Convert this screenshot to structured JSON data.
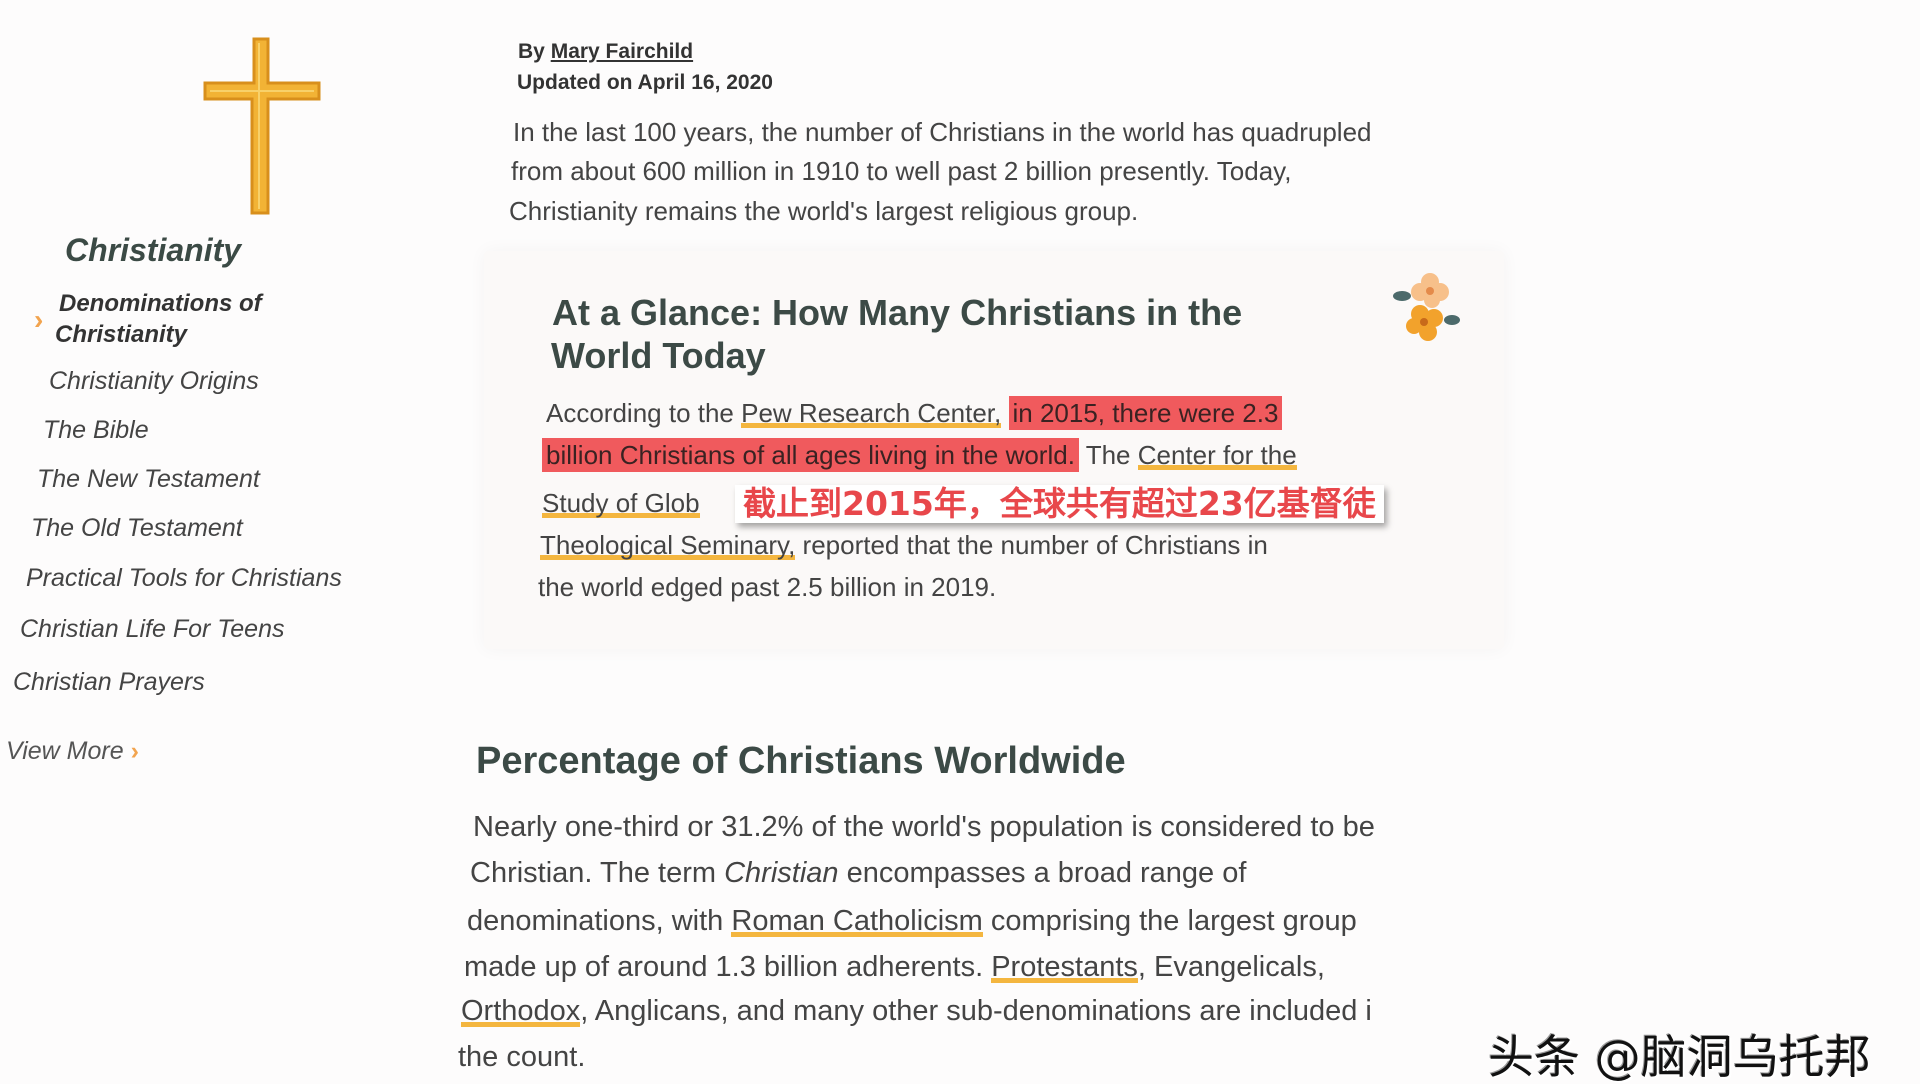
{
  "sidebar": {
    "title": "Christianity",
    "items": [
      {
        "label_lines": [
          "Denominations of",
          "Christianity"
        ],
        "active": true
      },
      {
        "label": "Christianity Origins"
      },
      {
        "label": "The Bible"
      },
      {
        "label": "The New Testament"
      },
      {
        "label": "The Old Testament"
      },
      {
        "label": "Practical Tools for Christians"
      },
      {
        "label": "Christian Life For Teens"
      },
      {
        "label": "Christian Prayers"
      }
    ],
    "view_more": "View More",
    "chevron": "›",
    "icon": "cross-icon"
  },
  "article": {
    "by": "By",
    "author": "Mary Fairchild",
    "updated": "Updated on April 16, 2020",
    "intro_lines": [
      "In the last 100 years, the number of Christians in the world has quadrupled",
      "from about 600 million in 1910 to well past 2 billion presently. Today,",
      "Christianity remains the world's largest religious group."
    ],
    "glance": {
      "title_lines": [
        "At a Glance: How Many Christians in the",
        "World Today"
      ],
      "icon": "flower-icon",
      "l1a": "According to the ",
      "l1link": "Pew Research Center,",
      "l1hl": "in 2015, there were 2.3",
      "l2hl": "billion Christians of all ages living in the world.",
      "l2b": " The ",
      "l2link": "Center for the",
      "l3link": "Study of Glob",
      "l4link": "Theological Seminary,",
      "l4b": " reported that the number of Christians in",
      "l5": "the world edged past 2.5 billion in 2019."
    },
    "section": {
      "title": "Percentage of Christians Worldwide",
      "l1": "Nearly one-third or 31.2% of the world's population is considered to be",
      "l2a": "Christian. The term ",
      "l2em": "Christian",
      "l2b": " encompasses a broad range of",
      "l3a": "denominations, with ",
      "l3link": "Roman Catholicism",
      "l3b": " comprising the largest group",
      "l4a": "made up of around 1.3 billion adherents. ",
      "l4link": "Protestants",
      "l4b": ", Evangelicals,",
      "l5link": "Orthodox",
      "l5b": ", Anglicans, and many other sub-denominations are included i",
      "l6": "the count."
    }
  },
  "subtitle": "截止到2015年，全球共有超过23亿基督徒",
  "watermark": "头条 @脑洞乌托邦",
  "colors": {
    "accent": "#f4b63f",
    "highlight": "#f05a5d",
    "subtitle": "#e8474b"
  }
}
